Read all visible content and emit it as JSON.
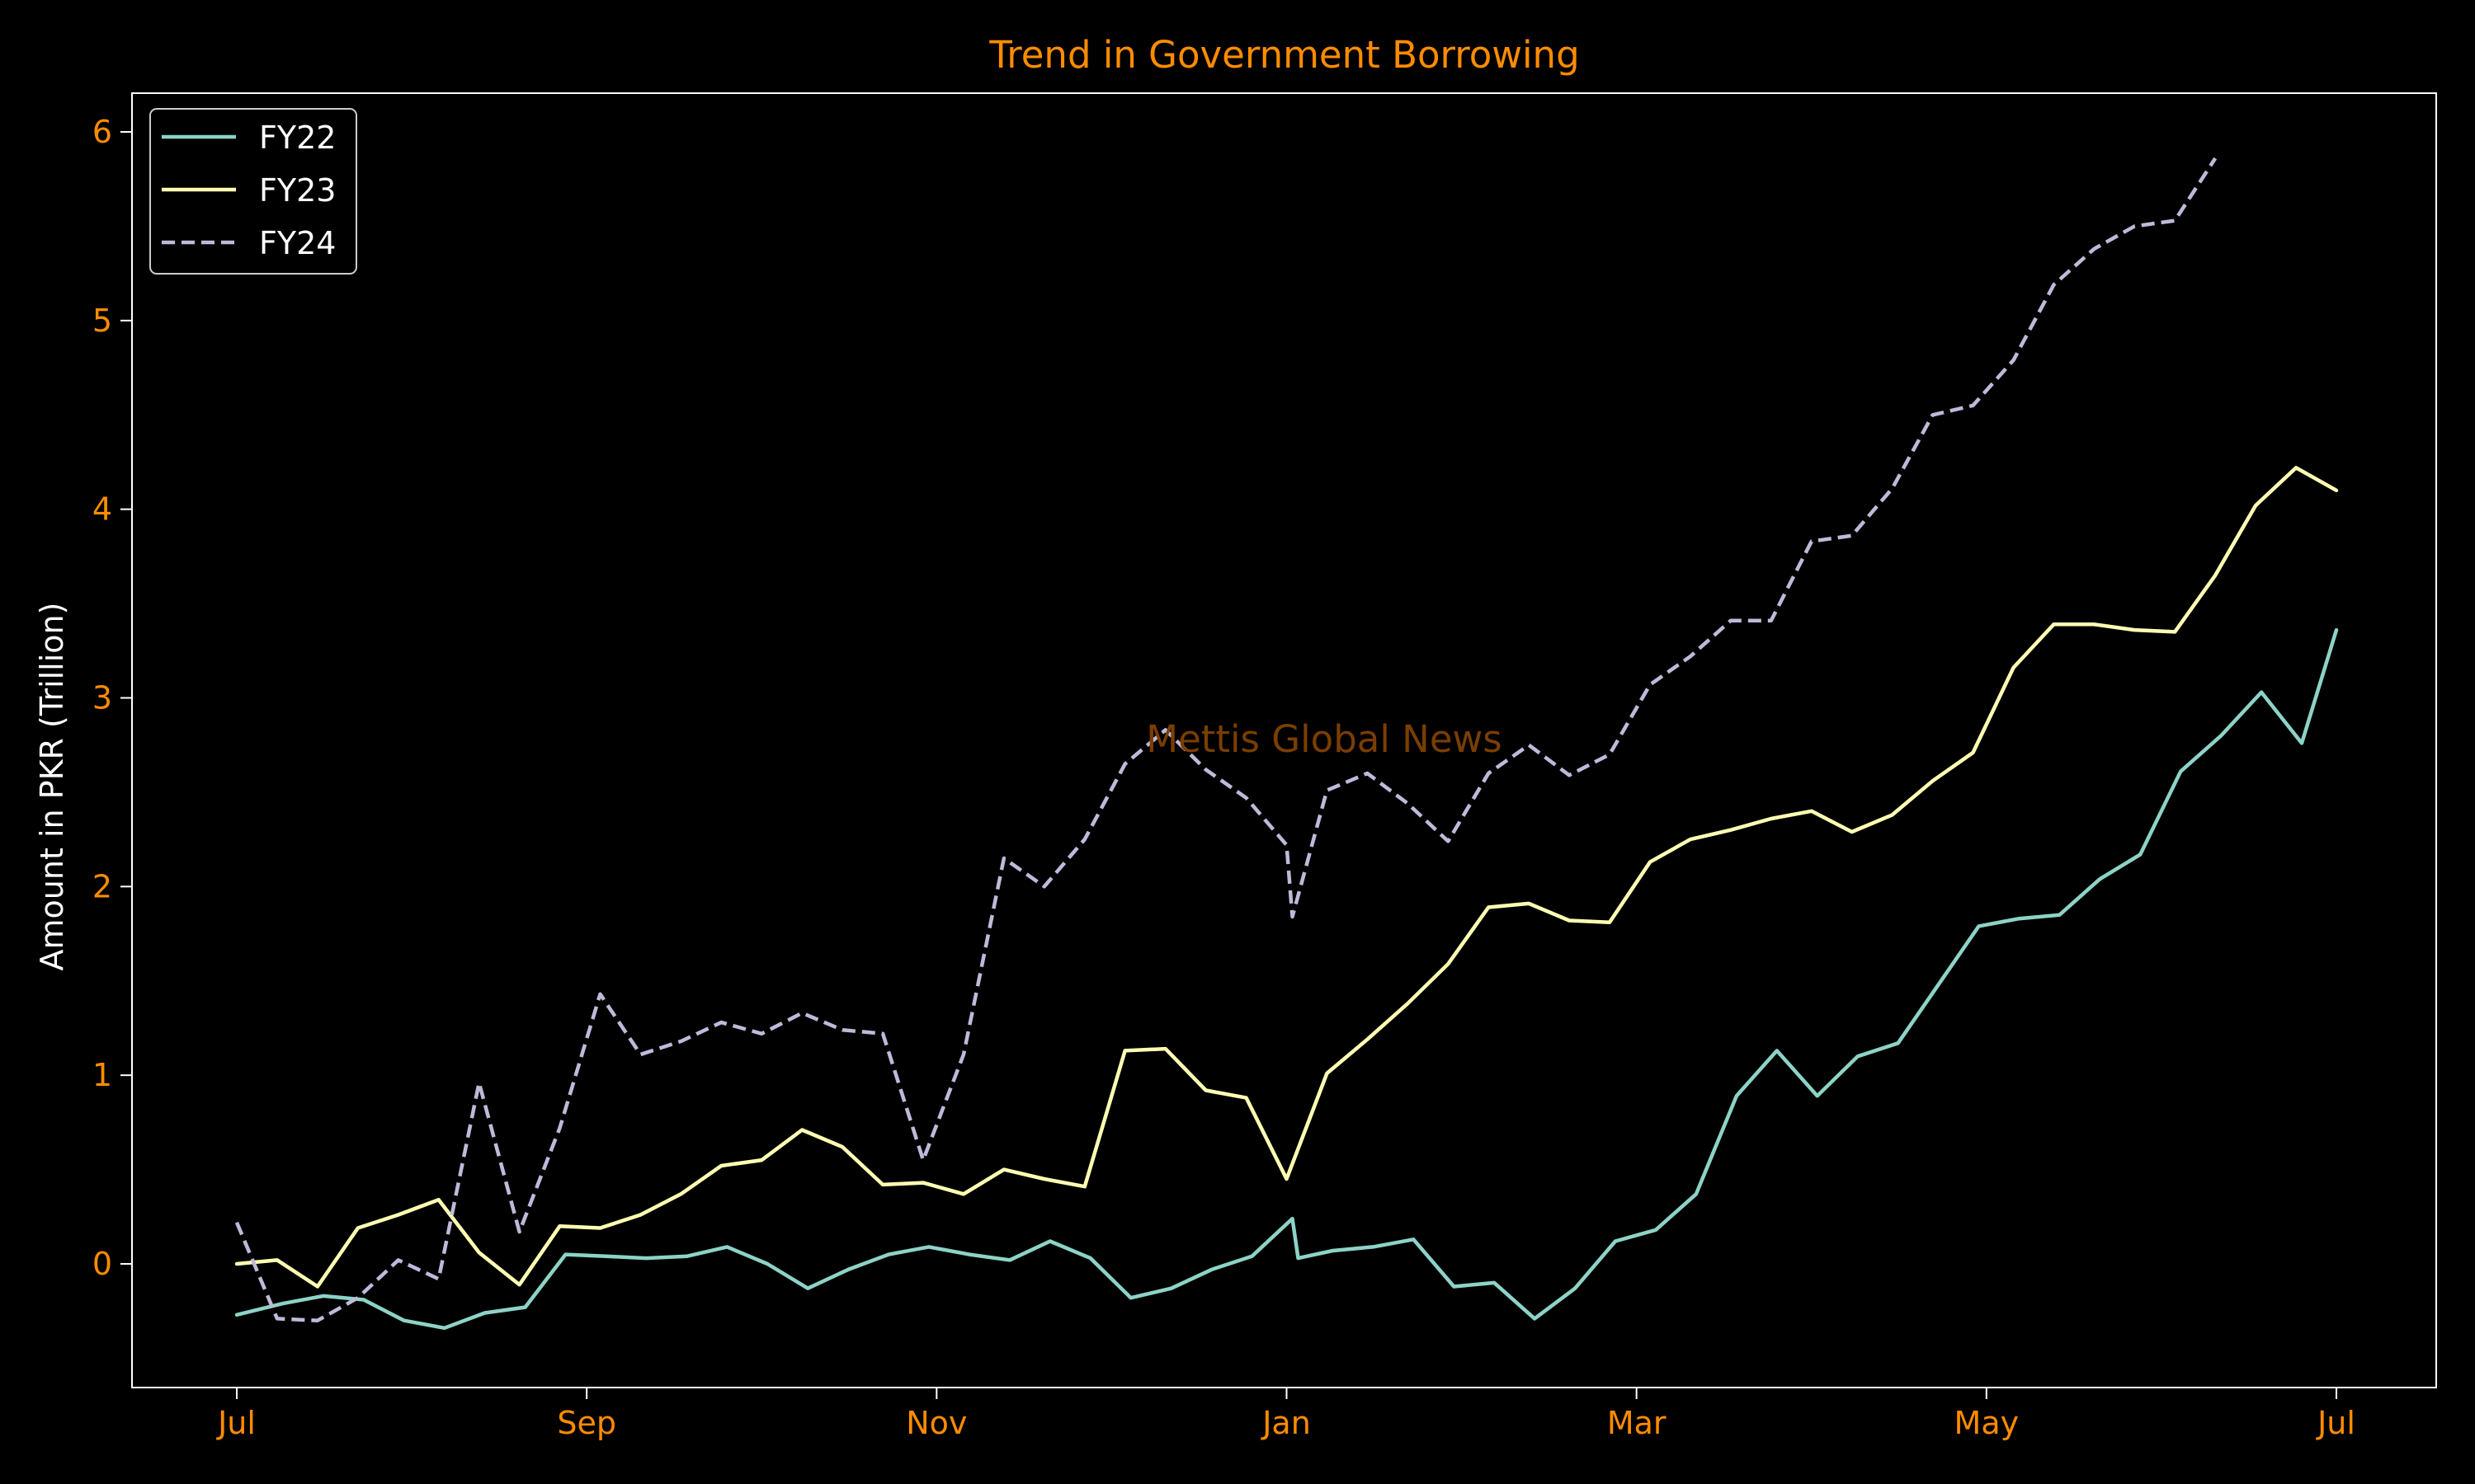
{
  "chart_data": {
    "type": "line",
    "title": "Trend in Government Borrowing",
    "xlabel": "",
    "ylabel": "Amount in PKR (Trillion)",
    "watermark": "Mettis Global News",
    "x_tick_labels": [
      "Jul",
      "Sep",
      "Nov",
      "Jan",
      "Mar",
      "May",
      "Jul"
    ],
    "y_ticks": [
      0,
      1,
      2,
      3,
      4,
      5,
      6
    ],
    "ylim": [
      -0.65,
      6.2
    ],
    "legend_position": "top-left",
    "grid": false,
    "colors": {
      "background": "#000000",
      "title": "#ff8c00",
      "tick_labels": "#ff8c00",
      "axis_label": "#ffffff",
      "axes": "#ffffff",
      "watermark": "#7a3e00"
    },
    "series": [
      {
        "name": "FY22",
        "color": "#8dd3c7",
        "dash": "solid",
        "points": [
          [
            "2021-07-01",
            -0.27
          ],
          [
            "2021-07-09",
            -0.21
          ],
          [
            "2021-07-16",
            -0.17
          ],
          [
            "2021-07-23",
            -0.19
          ],
          [
            "2021-07-30",
            -0.3
          ],
          [
            "2021-08-06",
            -0.34
          ],
          [
            "2021-08-13",
            -0.26
          ],
          [
            "2021-08-20",
            -0.23
          ],
          [
            "2021-08-27",
            0.05
          ],
          [
            "2021-09-03",
            0.04
          ],
          [
            "2021-09-10",
            0.03
          ],
          [
            "2021-09-17",
            0.04
          ],
          [
            "2021-09-24",
            0.09
          ],
          [
            "2021-10-01",
            0.0
          ],
          [
            "2021-10-08",
            -0.13
          ],
          [
            "2021-10-15",
            -0.03
          ],
          [
            "2021-10-22",
            0.05
          ],
          [
            "2021-10-29",
            0.09
          ],
          [
            "2021-11-05",
            0.05
          ],
          [
            "2021-11-12",
            0.02
          ],
          [
            "2021-11-19",
            0.12
          ],
          [
            "2021-11-26",
            0.03
          ],
          [
            "2021-12-03",
            -0.18
          ],
          [
            "2021-12-10",
            -0.13
          ],
          [
            "2021-12-17",
            -0.03
          ],
          [
            "2021-12-24",
            0.04
          ],
          [
            "2021-12-31",
            0.24
          ],
          [
            "2022-01-01",
            0.03
          ],
          [
            "2022-01-07",
            0.07
          ],
          [
            "2022-01-14",
            0.09
          ],
          [
            "2022-01-21",
            0.13
          ],
          [
            "2022-01-28",
            -0.12
          ],
          [
            "2022-02-04",
            -0.1
          ],
          [
            "2022-02-11",
            -0.29
          ],
          [
            "2022-02-18",
            -0.13
          ],
          [
            "2022-02-25",
            0.12
          ],
          [
            "2022-03-04",
            0.18
          ],
          [
            "2022-03-11",
            0.37
          ],
          [
            "2022-03-18",
            0.89
          ],
          [
            "2022-03-25",
            1.13
          ],
          [
            "2022-04-01",
            0.89
          ],
          [
            "2022-04-08",
            1.1
          ],
          [
            "2022-04-15",
            1.17
          ],
          [
            "2022-04-22",
            1.48
          ],
          [
            "2022-04-29",
            1.79
          ],
          [
            "2022-05-06",
            1.83
          ],
          [
            "2022-05-13",
            1.85
          ],
          [
            "2022-05-20",
            2.04
          ],
          [
            "2022-05-27",
            2.17
          ],
          [
            "2022-06-03",
            2.61
          ],
          [
            "2022-06-10",
            2.8
          ],
          [
            "2022-06-17",
            3.03
          ],
          [
            "2022-06-24",
            2.76
          ],
          [
            "2022-06-30",
            3.36
          ]
        ]
      },
      {
        "name": "FY23",
        "color": "#ffffb3",
        "dash": "solid",
        "points": [
          [
            "2021-07-01",
            0.0
          ],
          [
            "2021-07-08",
            0.02
          ],
          [
            "2021-07-15",
            -0.12
          ],
          [
            "2021-07-22",
            0.19
          ],
          [
            "2021-07-29",
            0.26
          ],
          [
            "2021-08-05",
            0.34
          ],
          [
            "2021-08-12",
            0.06
          ],
          [
            "2021-08-19",
            -0.11
          ],
          [
            "2021-08-26",
            0.2
          ],
          [
            "2021-09-02",
            0.19
          ],
          [
            "2021-09-09",
            0.26
          ],
          [
            "2021-09-16",
            0.37
          ],
          [
            "2021-09-23",
            0.52
          ],
          [
            "2021-09-30",
            0.55
          ],
          [
            "2021-10-07",
            0.71
          ],
          [
            "2021-10-14",
            0.62
          ],
          [
            "2021-10-21",
            0.42
          ],
          [
            "2021-10-28",
            0.43
          ],
          [
            "2021-11-04",
            0.37
          ],
          [
            "2021-11-11",
            0.5
          ],
          [
            "2021-11-18",
            0.45
          ],
          [
            "2021-11-25",
            0.41
          ],
          [
            "2021-12-02",
            1.13
          ],
          [
            "2021-12-09",
            1.14
          ],
          [
            "2021-12-16",
            0.92
          ],
          [
            "2021-12-23",
            0.88
          ],
          [
            "2021-12-30",
            0.45
          ],
          [
            "2022-01-06",
            1.01
          ],
          [
            "2022-01-13",
            1.19
          ],
          [
            "2022-01-20",
            1.38
          ],
          [
            "2022-01-27",
            1.59
          ],
          [
            "2022-02-03",
            1.89
          ],
          [
            "2022-02-10",
            1.91
          ],
          [
            "2022-02-17",
            1.82
          ],
          [
            "2022-02-24",
            1.81
          ],
          [
            "2022-03-03",
            2.13
          ],
          [
            "2022-03-10",
            2.25
          ],
          [
            "2022-03-17",
            2.3
          ],
          [
            "2022-03-24",
            2.36
          ],
          [
            "2022-03-31",
            2.4
          ],
          [
            "2022-04-07",
            2.29
          ],
          [
            "2022-04-14",
            2.38
          ],
          [
            "2022-04-21",
            2.56
          ],
          [
            "2022-04-28",
            2.71
          ],
          [
            "2022-05-05",
            3.16
          ],
          [
            "2022-05-12",
            3.39
          ],
          [
            "2022-05-19",
            3.39
          ],
          [
            "2022-05-26",
            3.36
          ],
          [
            "2022-06-02",
            3.35
          ],
          [
            "2022-06-09",
            3.65
          ],
          [
            "2022-06-16",
            4.02
          ],
          [
            "2022-06-23",
            4.22
          ],
          [
            "2022-06-30",
            4.1
          ]
        ]
      },
      {
        "name": "FY24",
        "color": "#bebada",
        "dash": "dashed",
        "points": [
          [
            "2021-07-01",
            0.22
          ],
          [
            "2021-07-08",
            -0.29
          ],
          [
            "2021-07-15",
            -0.3
          ],
          [
            "2021-07-22",
            -0.18
          ],
          [
            "2021-07-29",
            0.02
          ],
          [
            "2021-08-05",
            -0.08
          ],
          [
            "2021-08-12",
            0.96
          ],
          [
            "2021-08-19",
            0.17
          ],
          [
            "2021-08-26",
            0.72
          ],
          [
            "2021-09-02",
            1.43
          ],
          [
            "2021-09-09",
            1.11
          ],
          [
            "2021-09-16",
            1.18
          ],
          [
            "2021-09-23",
            1.28
          ],
          [
            "2021-09-30",
            1.22
          ],
          [
            "2021-10-07",
            1.33
          ],
          [
            "2021-10-14",
            1.24
          ],
          [
            "2021-10-21",
            1.22
          ],
          [
            "2021-10-28",
            0.55
          ],
          [
            "2021-11-04",
            1.11
          ],
          [
            "2021-11-11",
            2.15
          ],
          [
            "2021-11-18",
            2.0
          ],
          [
            "2021-11-25",
            2.25
          ],
          [
            "2021-12-02",
            2.65
          ],
          [
            "2021-12-09",
            2.83
          ],
          [
            "2021-12-16",
            2.62
          ],
          [
            "2021-12-23",
            2.47
          ],
          [
            "2021-12-30",
            2.22
          ],
          [
            "2021-12-31",
            1.84
          ],
          [
            "2022-01-06",
            2.51
          ],
          [
            "2022-01-13",
            2.6
          ],
          [
            "2022-01-20",
            2.44
          ],
          [
            "2022-01-27",
            2.24
          ],
          [
            "2022-02-03",
            2.6
          ],
          [
            "2022-02-10",
            2.75
          ],
          [
            "2022-02-17",
            2.59
          ],
          [
            "2022-02-24",
            2.7
          ],
          [
            "2022-03-03",
            3.07
          ],
          [
            "2022-03-10",
            3.22
          ],
          [
            "2022-03-17",
            3.41
          ],
          [
            "2022-03-24",
            3.41
          ],
          [
            "2022-03-31",
            3.83
          ],
          [
            "2022-04-07",
            3.86
          ],
          [
            "2022-04-14",
            4.11
          ],
          [
            "2022-04-21",
            4.5
          ],
          [
            "2022-04-28",
            4.55
          ],
          [
            "2022-05-05",
            4.79
          ],
          [
            "2022-05-12",
            5.19
          ],
          [
            "2022-05-19",
            5.38
          ],
          [
            "2022-05-26",
            5.5
          ],
          [
            "2022-06-02",
            5.53
          ],
          [
            "2022-06-09",
            5.86
          ]
        ]
      }
    ]
  }
}
